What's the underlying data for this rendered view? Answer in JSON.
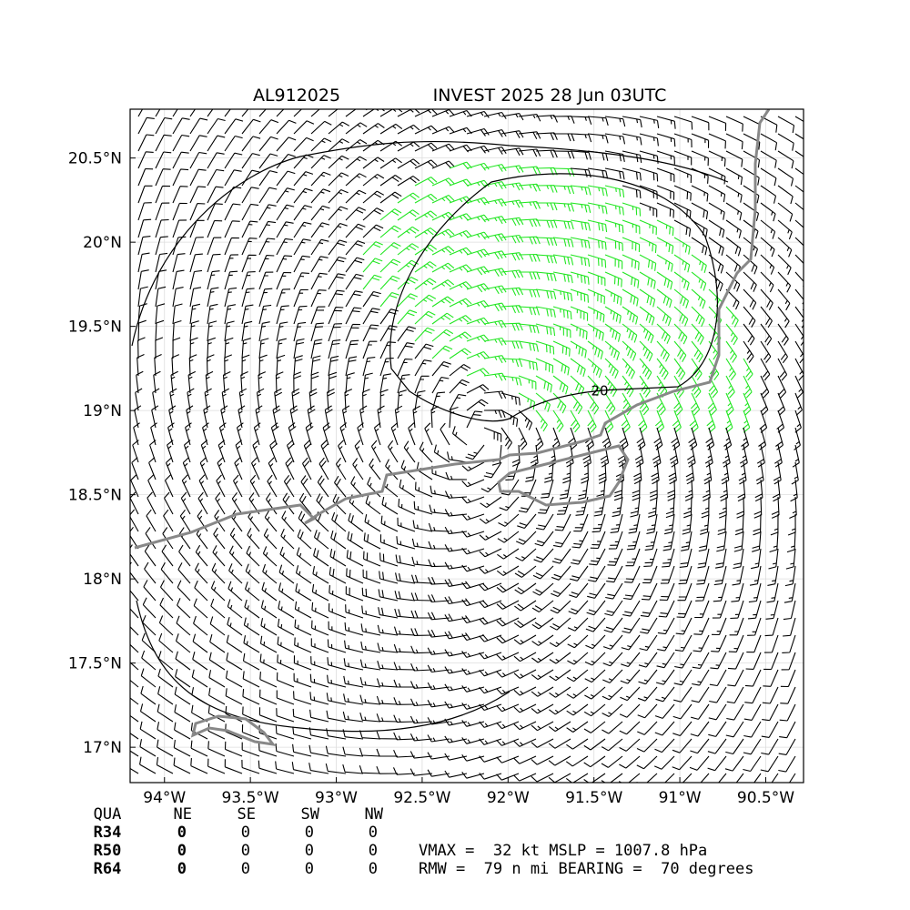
{
  "chart_data": {
    "type": "map",
    "storm_id": "AL912025",
    "title": "INVEST 2025 28 Jun 03UTC",
    "xlim": [
      -94.2,
      -90.28
    ],
    "ylim": [
      16.79,
      20.79
    ],
    "xticks": [
      {
        "value": -94,
        "label": "94°W"
      },
      {
        "value": -93.5,
        "label": "93.5°W"
      },
      {
        "value": -93,
        "label": "93°W"
      },
      {
        "value": -92.5,
        "label": "92.5°W"
      },
      {
        "value": -92,
        "label": "92°W"
      },
      {
        "value": -91.5,
        "label": "91.5°W"
      },
      {
        "value": -91,
        "label": "91°W"
      },
      {
        "value": -90.5,
        "label": "90.5°W"
      }
    ],
    "yticks": [
      {
        "value": 17,
        "label": "17°N"
      },
      {
        "value": 17.5,
        "label": "17.5°N"
      },
      {
        "value": 18,
        "label": "18°N"
      },
      {
        "value": 18.5,
        "label": "18.5°N"
      },
      {
        "value": 19,
        "label": "19°N"
      },
      {
        "value": 19.5,
        "label": "19.5°N"
      },
      {
        "value": 20,
        "label": "20°N"
      },
      {
        "value": 20.5,
        "label": "20.5°N"
      }
    ],
    "grid": true,
    "contour_label": "20"
  },
  "table": {
    "header": [
      "QUA",
      "NE",
      "SE",
      "SW",
      "NW"
    ],
    "rows": [
      [
        "R34",
        0,
        0,
        0,
        0
      ],
      [
        "R50",
        0,
        0,
        0,
        0
      ],
      [
        "R64",
        0,
        0,
        0,
        0
      ]
    ]
  },
  "info": [
    "VMAX =  32 kt MSLP = 1007.8 hPa",
    "RMW =  79 n mi BEARING =  70 degrees"
  ]
}
